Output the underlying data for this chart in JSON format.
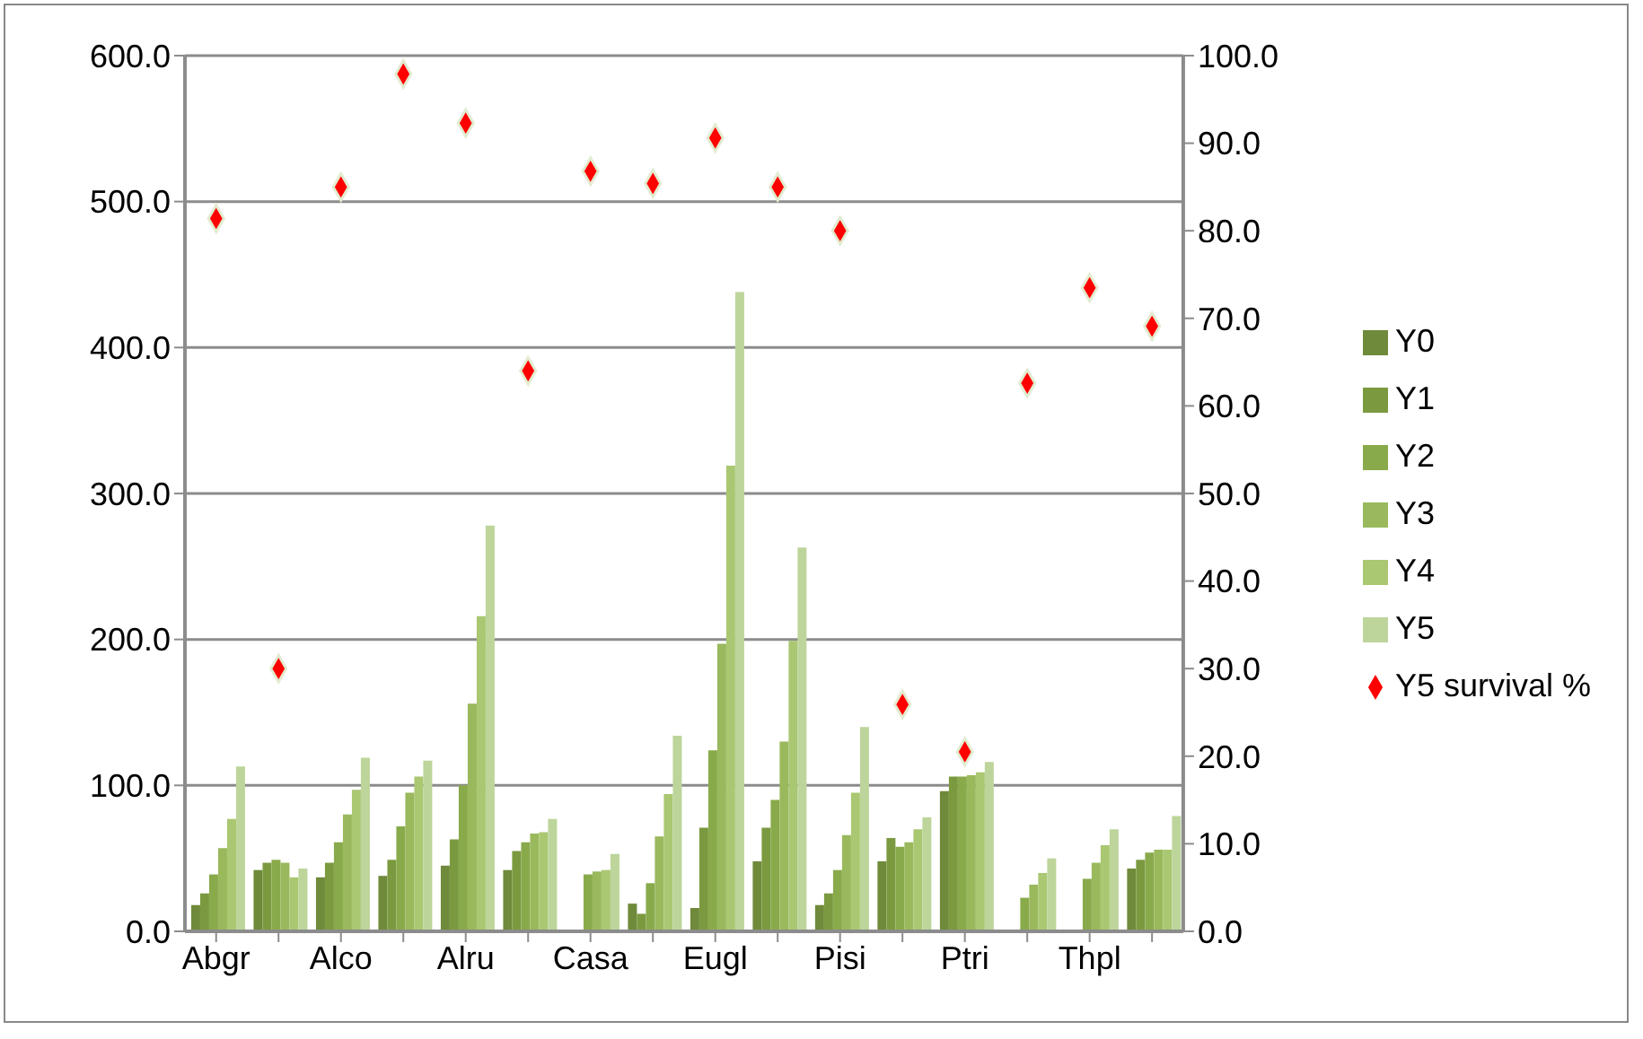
{
  "chart_data": {
    "type": "bar",
    "categories": [
      "Abgr",
      null,
      "Alco",
      null,
      "Alru",
      null,
      "Casa",
      null,
      "Eugl",
      null,
      "Pisi",
      null,
      "Ptri",
      null,
      "Thpl",
      null
    ],
    "series": [
      {
        "name": "Y0",
        "color": "#6f8a3a",
        "values": [
          18,
          42,
          37,
          38,
          45,
          42,
          null,
          19,
          16,
          48,
          18,
          48,
          96,
          null,
          null,
          43
        ]
      },
      {
        "name": "Y1",
        "color": "#7b9a40",
        "values": [
          26,
          47,
          47,
          49,
          63,
          55,
          null,
          12,
          71,
          71,
          26,
          64,
          106,
          null,
          null,
          49
        ]
      },
      {
        "name": "Y2",
        "color": "#89aa4b",
        "values": [
          39,
          49,
          61,
          72,
          100,
          61,
          39,
          33,
          124,
          90,
          42,
          58,
          106,
          23,
          36,
          54
        ]
      },
      {
        "name": "Y3",
        "color": "#99b95c",
        "values": [
          57,
          47,
          80,
          95,
          156,
          67,
          41,
          65,
          197,
          130,
          66,
          61,
          107,
          32,
          47,
          56
        ]
      },
      {
        "name": "Y4",
        "color": "#aac772",
        "values": [
          77,
          37,
          97,
          106,
          216,
          68,
          42,
          94,
          319,
          199,
          95,
          70,
          109,
          40,
          59,
          56
        ]
      },
      {
        "name": "Y5",
        "color": "#bdd59b",
        "values": [
          113,
          43,
          119,
          117,
          278,
          77,
          53,
          134,
          438,
          263,
          140,
          78,
          116,
          50,
          70,
          79
        ]
      },
      {
        "name": "Y5 survival %",
        "type": "scatter",
        "axis": "y2",
        "color": "#ff0000",
        "marker": "diamond",
        "values": [
          81.4,
          30.0,
          85.0,
          97.9,
          92.3,
          64.0,
          86.8,
          85.4,
          90.6,
          85.0,
          80.0,
          25.9,
          20.5,
          62.6,
          73.5,
          69.1
        ]
      }
    ],
    "ylim": [
      0,
      600
    ],
    "yticks": [
      {
        "value": 0,
        "label": "0.0"
      },
      {
        "value": 100,
        "label": "100.0"
      },
      {
        "value": 200,
        "label": "200.0"
      },
      {
        "value": 300,
        "label": "300.0"
      },
      {
        "value": 400,
        "label": "400.0"
      },
      {
        "value": 500,
        "label": "500.0"
      },
      {
        "value": 600,
        "label": "600.0"
      }
    ],
    "y2lim": [
      0,
      100
    ],
    "y2ticks": [
      {
        "value": 0,
        "label": "0.0"
      },
      {
        "value": 10,
        "label": "10.0"
      },
      {
        "value": 20,
        "label": "20.0"
      },
      {
        "value": 30,
        "label": "30.0"
      },
      {
        "value": 40,
        "label": "40.0"
      },
      {
        "value": 50,
        "label": "50.0"
      },
      {
        "value": 60,
        "label": "60.0"
      },
      {
        "value": 70,
        "label": "70.0"
      },
      {
        "value": 80,
        "label": "80.0"
      },
      {
        "value": 90,
        "label": "90.0"
      },
      {
        "value": 100,
        "label": "100.0"
      }
    ],
    "grid": "y",
    "legend": "right"
  }
}
